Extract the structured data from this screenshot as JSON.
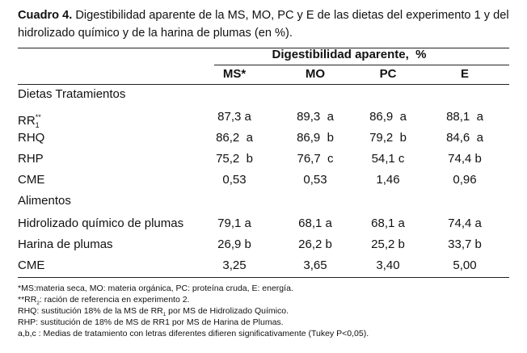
{
  "caption": {
    "label": "Cuadro 4.",
    "text": "Digestibilidad aparente de la MS, MO, PC y E de las dietas del experimento 1 y del hidrolizado químico y de la harina de plumas (en %)."
  },
  "table": {
    "group_header": "Digestibilidad aparente,  %",
    "columns": [
      "MS*",
      "MO",
      "PC",
      "E"
    ],
    "sections": [
      {
        "title": "Dietas Tratamientos",
        "rows": [
          {
            "label": "RR",
            "label_sub": "1",
            "label_sup": "**",
            "cells": [
              "87,3 a",
              "89,3  a",
              "86,9  a",
              "88,1  a"
            ]
          },
          {
            "label": "RHQ",
            "cells": [
              "86,2  a",
              "86,9  b",
              "79,2  b",
              "84,6  a"
            ]
          },
          {
            "label": "RHP",
            "cells": [
              "75,2  b",
              "76,7  c",
              "54,1 c",
              "74,4 b"
            ]
          },
          {
            "label": "CME",
            "cells": [
              "0,53",
              "0,53",
              "1,46",
              "0,96"
            ]
          }
        ]
      },
      {
        "title": "Alimentos",
        "rows": [
          {
            "label": "Hidrolizado químico de plumas",
            "cells": [
              "79,1 a",
              "68,1 a",
              "68,1 a",
              "74,4 a"
            ]
          },
          {
            "label": "Harina de plumas",
            "cells": [
              "26,9 b",
              "26,2 b",
              "25,2 b",
              "33,7 b"
            ]
          },
          {
            "label": "CME",
            "cells": [
              "3,25",
              "3,65",
              "3,40",
              "5,00"
            ]
          }
        ]
      }
    ]
  },
  "footnotes": [
    [
      "*MS:materia seca, MO: materia orgánica, PC: proteína cruda, E: energía."
    ],
    [
      "**RR",
      "2",
      ": ración de referencia en experimento 2."
    ],
    [
      "RHQ: sustitución 18% de la MS de RR",
      "1",
      " por MS de Hidrolizado Químico."
    ],
    [
      "RHP: sustitución de 18% de MS de RR1 por MS de Harina de Plumas."
    ],
    [
      "a,b,c : Medias de tratamiento con letras diferentes difieren significativamente (Tukey P<0,05)."
    ]
  ]
}
